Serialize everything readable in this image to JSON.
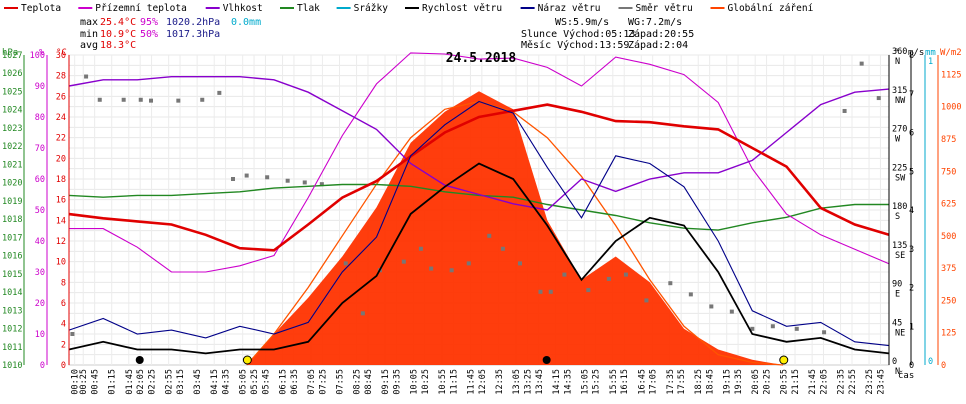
{
  "chart_data": {
    "type": "line",
    "title": "24.5.2018",
    "legend": [
      {
        "label": "Teplota",
        "color": "#e00000"
      },
      {
        "label": "Přízemní teplota",
        "color": "#cc00cc"
      },
      {
        "label": "Vlhkost",
        "color": "#8800cc"
      },
      {
        "label": "Tlak",
        "color": "#228822"
      },
      {
        "label": "Srážky",
        "color": "#00aacc"
      },
      {
        "label": "Rychlost větru",
        "color": "#000000"
      },
      {
        "label": "Náraz větru",
        "color": "#000088"
      },
      {
        "label": "Směr větru",
        "color": "#777777"
      },
      {
        "label": "Globální záření",
        "color": "#ff4400"
      }
    ],
    "stats": {
      "max_label": "max",
      "max_temp": "25.4°C",
      "max_hum": "95%",
      "max_press": "1020.2hPa",
      "rain": "0.0mm",
      "min_label": "min",
      "min_temp": "10.9°C",
      "min_hum": "50%",
      "min_press": "1017.3hPa",
      "avg_label": "avg",
      "avg_temp": "18.3°C"
    },
    "info": {
      "ws": "WS:5.9m/s",
      "wg": "WG:7.2m/s",
      "sun": "Slunce Východ:05:13",
      "sun_set": "Západ:20:55",
      "moon": "Měsíc Východ:13:59",
      "moon_set": "Západ:2:04"
    },
    "axes": {
      "hpa": {
        "unit": "hPa",
        "ticks": [
          1010,
          1011,
          1012,
          1013,
          1014,
          1015,
          1016,
          1017,
          1018,
          1019,
          1020,
          1021,
          1022,
          1023,
          1024,
          1025,
          1026,
          1027
        ]
      },
      "pct": {
        "unit": "%",
        "ticks": [
          0,
          10,
          20,
          30,
          40,
          50,
          60,
          70,
          80,
          90,
          100
        ]
      },
      "temp": {
        "unit": "°C",
        "ticks": [
          0,
          2,
          4,
          6,
          8,
          10,
          12,
          14,
          16,
          18,
          20,
          22,
          24,
          26,
          28,
          30
        ]
      },
      "dir": {
        "unit": "°",
        "ticks": [
          {
            "deg": "0",
            "dir": "N"
          },
          {
            "deg": "45",
            "dir": "NE"
          },
          {
            "deg": "90",
            "dir": "E"
          },
          {
            "deg": "135",
            "dir": "SE"
          },
          {
            "deg": "180",
            "dir": "S"
          },
          {
            "deg": "225",
            "dir": "SW"
          },
          {
            "deg": "270",
            "dir": "W"
          },
          {
            "deg": "315",
            "dir": "NW"
          },
          {
            "deg": "360",
            "dir": "N"
          }
        ]
      },
      "ms": {
        "unit": "m/s",
        "ticks": [
          0,
          1,
          2,
          3,
          4,
          5,
          6,
          7,
          8
        ]
      },
      "mm": {
        "unit": "mm",
        "ticks": [
          0,
          1
        ]
      },
      "wm2": {
        "unit": "W/m2",
        "ticks": [
          0,
          125,
          250,
          375,
          500,
          625,
          750,
          875,
          1000,
          1125
        ]
      },
      "x_label": "čas",
      "x_ticks": [
        "00:10",
        "00:25",
        "00:45",
        "01:15",
        "01:45",
        "02:05",
        "02:25",
        "02:55",
        "03:15",
        "03:45",
        "04:15",
        "04:35",
        "05:05",
        "05:25",
        "05:45",
        "06:15",
        "06:35",
        "07:05",
        "07:25",
        "07:55",
        "08:25",
        "08:45",
        "09:15",
        "09:35",
        "10:05",
        "10:25",
        "10:55",
        "11:15",
        "11:45",
        "12:05",
        "12:35",
        "13:05",
        "13:25",
        "13:45",
        "14:15",
        "14:35",
        "15:05",
        "15:25",
        "15:55",
        "16:15",
        "16:45",
        "17:05",
        "17:35",
        "17:55",
        "18:25",
        "18:45",
        "19:15",
        "19:35",
        "20:05",
        "20:25",
        "20:55",
        "21:15",
        "21:45",
        "22:05",
        "22:35",
        "22:55",
        "23:25",
        "23:45"
      ]
    },
    "series": [
      {
        "name": "Teplota",
        "unit": "°C",
        "x": [
          0,
          1,
          2,
          3,
          4,
          5,
          6,
          7,
          8,
          9,
          10,
          11,
          12,
          13,
          14,
          15,
          16,
          17,
          18,
          19,
          20,
          21,
          22,
          23,
          24
        ],
        "values": [
          14.6,
          14.2,
          13.9,
          13.6,
          12.6,
          11.3,
          11.1,
          13.6,
          16.2,
          17.8,
          20.2,
          22.5,
          24.0,
          24.6,
          25.2,
          24.5,
          23.6,
          23.5,
          23.1,
          22.8,
          21.0,
          19.2,
          15.2,
          13.6,
          12.6
        ]
      },
      {
        "name": "Přízemní teplota",
        "unit": "°C",
        "x": [
          0,
          1,
          2,
          3,
          4,
          5,
          6,
          7,
          8,
          9,
          10,
          11,
          12,
          13,
          14,
          15,
          16,
          17,
          18,
          19,
          20,
          21,
          22,
          23,
          24
        ],
        "values": [
          13.2,
          13.2,
          11.4,
          9.0,
          9.0,
          9.6,
          10.6,
          16.2,
          22.2,
          27.2,
          30.2,
          30.1,
          29.6,
          29.7,
          28.8,
          27.0,
          29.8,
          29.1,
          28.1,
          25.4,
          19.0,
          14.6,
          12.6,
          11.2,
          9.8
        ]
      },
      {
        "name": "Vlhkost",
        "unit": "%",
        "x": [
          0,
          1,
          2,
          3,
          4,
          5,
          6,
          7,
          8,
          9,
          10,
          11,
          12,
          13,
          14,
          15,
          16,
          17,
          18,
          19,
          20,
          21,
          22,
          23,
          24
        ],
        "values": [
          90,
          92,
          92,
          93,
          93,
          93,
          92,
          88,
          82,
          76,
          65,
          58,
          55,
          52,
          50,
          60,
          56,
          60,
          62,
          62,
          66,
          75,
          84,
          88,
          89
        ]
      },
      {
        "name": "Tlak",
        "unit": "hPa",
        "x": [
          0,
          1,
          2,
          3,
          4,
          5,
          6,
          7,
          8,
          9,
          10,
          11,
          12,
          13,
          14,
          15,
          16,
          17,
          18,
          19,
          20,
          21,
          22,
          23,
          24
        ],
        "values": [
          1019.3,
          1019.2,
          1019.3,
          1019.3,
          1019.4,
          1019.5,
          1019.7,
          1019.8,
          1019.9,
          1019.9,
          1019.8,
          1019.5,
          1019.3,
          1019.2,
          1018.8,
          1018.5,
          1018.2,
          1017.8,
          1017.5,
          1017.4,
          1017.8,
          1018.1,
          1018.6,
          1018.8,
          1018.8
        ]
      },
      {
        "name": "Rychlost větru",
        "unit": "m/s",
        "x": [
          0,
          1,
          2,
          3,
          4,
          5,
          6,
          7,
          8,
          9,
          10,
          11,
          12,
          13,
          14,
          15,
          16,
          17,
          18,
          19,
          20,
          21,
          22,
          23,
          24
        ],
        "values": [
          0.4,
          0.6,
          0.4,
          0.4,
          0.3,
          0.4,
          0.4,
          0.6,
          1.6,
          2.3,
          3.9,
          4.6,
          5.2,
          4.8,
          3.6,
          2.2,
          3.2,
          3.8,
          3.6,
          2.4,
          0.8,
          0.6,
          0.7,
          0.4,
          0.3
        ]
      },
      {
        "name": "Náraz větru",
        "unit": "m/s",
        "x": [
          0,
          1,
          2,
          3,
          4,
          5,
          6,
          7,
          8,
          9,
          10,
          11,
          12,
          13,
          14,
          15,
          16,
          17,
          18,
          19,
          20,
          21,
          22,
          23,
          24
        ],
        "values": [
          0.9,
          1.2,
          0.8,
          0.9,
          0.7,
          1.0,
          0.8,
          1.1,
          2.4,
          3.3,
          5.4,
          6.2,
          6.8,
          6.5,
          5.1,
          3.8,
          5.4,
          5.2,
          4.6,
          3.2,
          1.4,
          1.0,
          1.1,
          0.6,
          0.5
        ]
      },
      {
        "name": "Globální záření",
        "unit": "W/m2",
        "x": [
          5.2,
          6,
          7,
          8,
          9,
          10,
          11,
          12,
          13,
          14,
          15,
          16,
          17,
          18,
          19,
          20,
          20.9
        ],
        "values": [
          0,
          120,
          260,
          420,
          610,
          860,
          980,
          1060,
          990,
          560,
          330,
          420,
          320,
          140,
          60,
          20,
          0
        ]
      },
      {
        "name": "Globální záření max",
        "unit": "W/m2",
        "x": [
          5.2,
          6,
          7,
          8,
          9,
          10,
          11,
          12,
          13,
          14,
          15,
          16,
          17,
          18,
          19,
          20,
          20.9
        ],
        "values": [
          0,
          120,
          300,
          500,
          700,
          880,
          990,
          1020,
          980,
          880,
          730,
          540,
          330,
          150,
          40,
          10,
          0
        ]
      },
      {
        "name": "Směr větru",
        "unit": "°",
        "x": [
          0.1,
          0.5,
          0.9,
          1.6,
          2.1,
          2.4,
          3.2,
          3.9,
          4.4,
          4.8,
          5.2,
          5.8,
          6.4,
          6.9,
          7.4,
          8.1,
          8.6,
          9.1,
          9.8,
          10.3,
          10.6,
          11.2,
          11.7,
          12.3,
          12.7,
          13.2,
          13.8,
          14.1,
          14.5,
          15.2,
          15.8,
          16.3,
          16.9,
          17.6,
          18.2,
          18.8,
          19.4,
          20.0,
          20.6,
          21.3,
          22.1,
          22.7,
          23.2,
          23.7
        ],
        "values": [
          36,
          335,
          308,
          308,
          308,
          307,
          307,
          308,
          316,
          216,
          220,
          218,
          214,
          212,
          210,
          118,
          60,
          110,
          120,
          135,
          112,
          110,
          118,
          150,
          135,
          118,
          85,
          85,
          105,
          87,
          100,
          105,
          75,
          95,
          82,
          68,
          62,
          42,
          45,
          42,
          38,
          295,
          350,
          310
        ]
      }
    ]
  }
}
